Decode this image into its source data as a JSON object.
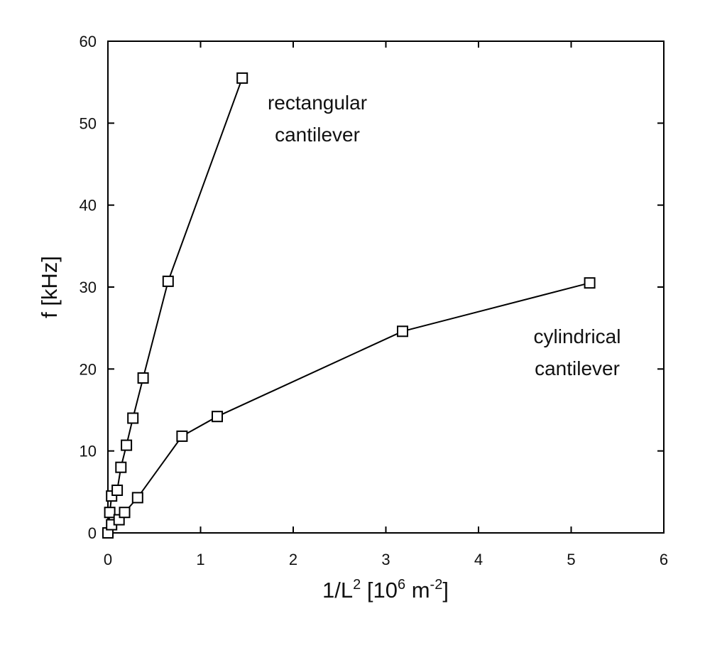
{
  "chart_data": {
    "type": "line",
    "xlim": [
      0,
      6
    ],
    "ylim": [
      0,
      60
    ],
    "x_ticks": [
      "0",
      "1",
      "2",
      "3",
      "4",
      "5",
      "6"
    ],
    "y_ticks": [
      "0",
      "10",
      "20",
      "30",
      "40",
      "50",
      "60"
    ],
    "ylabel": "f [kHz]",
    "xlabel": {
      "main": "1/L",
      "exp": "2",
      "open": " [10",
      "exp2": "6",
      "unit": " m",
      "exp3": "-2",
      "close": "]"
    },
    "grid": false,
    "legend": "none",
    "series": [
      {
        "label_lines": [
          "rectangular",
          "cantilever"
        ],
        "x": [
          0,
          0.02,
          0.04,
          0.1,
          0.14,
          0.2,
          0.27,
          0.38,
          0.65,
          1.45
        ],
        "y": [
          0,
          2.5,
          4.5,
          5.2,
          8.0,
          10.7,
          14.0,
          18.9,
          30.7,
          55.5
        ]
      },
      {
        "label_lines": [
          "cylindrical",
          "cantilever"
        ],
        "x": [
          0,
          0.04,
          0.12,
          0.18,
          0.32,
          0.8,
          1.18,
          3.18,
          5.2
        ],
        "y": [
          0,
          1.0,
          1.6,
          2.5,
          4.3,
          11.8,
          14.2,
          24.6,
          30.5
        ]
      }
    ],
    "marker": "open-square"
  }
}
